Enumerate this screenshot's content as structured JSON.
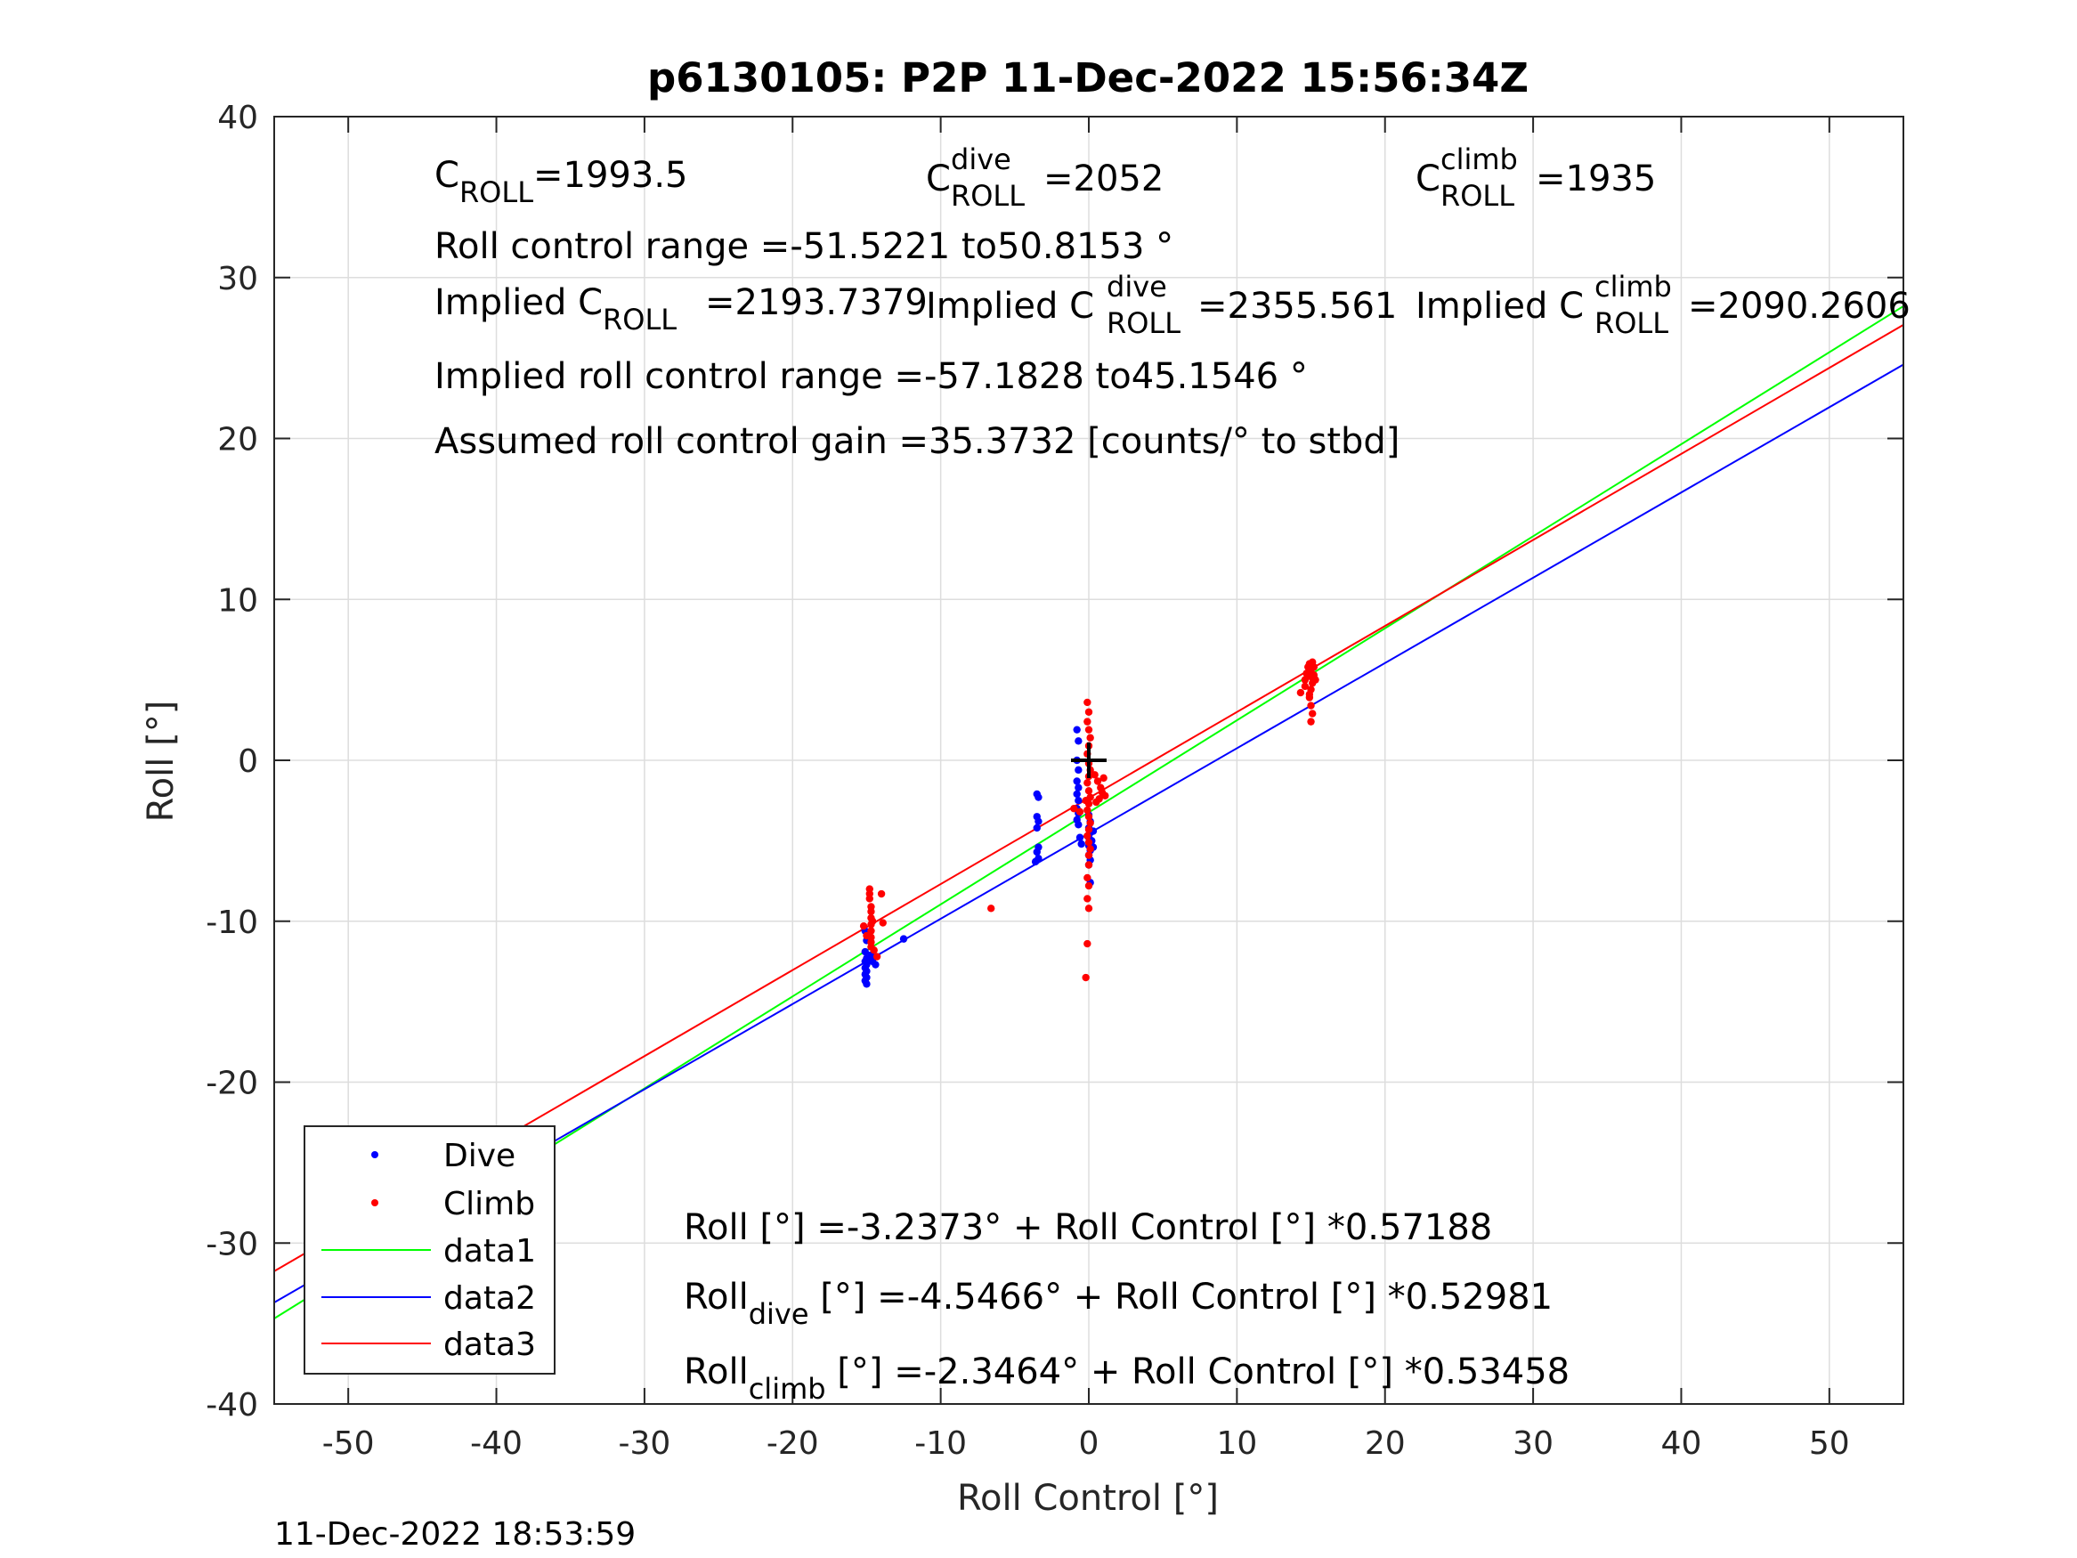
{
  "chart_data": {
    "type": "scatter",
    "title": "p6130105: P2P 11-Dec-2022 15:56:34Z",
    "xlabel": "Roll Control [°]",
    "ylabel": "Roll [°]",
    "xlim": [
      -55,
      55
    ],
    "ylim": [
      -40,
      40
    ],
    "xticks": [
      -50,
      -40,
      -30,
      -20,
      -10,
      0,
      10,
      20,
      30,
      40,
      50
    ],
    "yticks": [
      -40,
      -30,
      -20,
      -10,
      0,
      10,
      20,
      30,
      40
    ],
    "grid": true,
    "legend_position": "bottom-left",
    "timestamp": "11-Dec-2022 18:53:59",
    "center_marker": {
      "x": 0,
      "y": 0
    },
    "annotations": {
      "c_roll": {
        "main": "C",
        "sub": "ROLL",
        "value": "=1993.5"
      },
      "c_roll_dive": {
        "main": "C",
        "sup": "dive",
        "sub": "ROLL",
        "value": "=2052"
      },
      "c_roll_climb": {
        "main": "C",
        "sup": "climb",
        "sub": "ROLL",
        "value": "=1935"
      },
      "roll_control_range": "Roll control range =-51.5221 to50.8153 °",
      "implied_c_roll": {
        "main": "Implied C",
        "sub": "ROLL",
        "value": "=2193.7379"
      },
      "implied_c_roll_dive": {
        "main": "Implied C",
        "sup": "dive",
        "sub": "ROLL",
        "value": "=2355.561"
      },
      "implied_c_roll_climb": {
        "main": "Implied C",
        "sup": "climb",
        "sub": "ROLL",
        "value": "=2090.2606"
      },
      "implied_range": "Implied roll control range =-57.1828 to45.1546 °",
      "gain": "Assumed roll control gain =35.3732 [counts/° to stbd]",
      "fit_all": "Roll [°] =-3.2373° + Roll Control [°] *0.57188",
      "fit_dive": {
        "main": "Roll",
        "sub": "dive",
        "rest": " [°] =-4.5466° + Roll Control [°] *0.52981"
      },
      "fit_climb": {
        "main": "Roll",
        "sub": "climb",
        "rest": " [°] =-2.3464° + Roll Control [°] *0.53458"
      }
    },
    "series": [
      {
        "name": "Dive",
        "kind": "points",
        "color": "#0000ff",
        "points": [
          [
            -15.1,
            -10.6
          ],
          [
            -15.0,
            -11.2
          ],
          [
            -15.1,
            -11.9
          ],
          [
            -15.0,
            -12.3
          ],
          [
            -15.1,
            -12.5
          ],
          [
            -15.0,
            -12.7
          ],
          [
            -15.1,
            -12.9
          ],
          [
            -15.0,
            -13.1
          ],
          [
            -15.1,
            -13.3
          ],
          [
            -15.0,
            -13.5
          ],
          [
            -15.1,
            -13.7
          ],
          [
            -15.0,
            -13.9
          ],
          [
            -14.7,
            -12.1
          ],
          [
            -14.6,
            -12.5
          ],
          [
            -14.4,
            -12.7
          ],
          [
            -12.5,
            -11.1
          ],
          [
            -3.5,
            -2.1
          ],
          [
            -3.4,
            -2.3
          ],
          [
            -3.5,
            -3.5
          ],
          [
            -3.4,
            -3.8
          ],
          [
            -3.5,
            -4.2
          ],
          [
            -3.4,
            -5.4
          ],
          [
            -3.5,
            -5.7
          ],
          [
            -3.4,
            -6.1
          ],
          [
            -3.6,
            -6.3
          ],
          [
            -0.8,
            1.9
          ],
          [
            -0.7,
            1.2
          ],
          [
            -0.8,
            0.0
          ],
          [
            -0.7,
            -0.6
          ],
          [
            -0.8,
            -1.3
          ],
          [
            -0.7,
            -1.7
          ],
          [
            -0.8,
            -2.1
          ],
          [
            -0.7,
            -2.5
          ],
          [
            -0.8,
            -3.0
          ],
          [
            -0.7,
            -3.3
          ],
          [
            -0.8,
            -3.7
          ],
          [
            -0.7,
            -4.0
          ],
          [
            -0.6,
            -4.8
          ],
          [
            -0.5,
            -5.2
          ],
          [
            0.0,
            -3.4
          ],
          [
            0.1,
            -3.8
          ],
          [
            0.0,
            -4.2
          ],
          [
            0.1,
            -4.5
          ],
          [
            0.0,
            -4.8
          ],
          [
            0.1,
            -5.0
          ],
          [
            0.0,
            -5.3
          ],
          [
            0.1,
            -5.6
          ],
          [
            0.0,
            -5.9
          ],
          [
            0.1,
            -6.2
          ],
          [
            0.0,
            -6.5
          ],
          [
            0.1,
            -7.6
          ],
          [
            0.2,
            -5.0
          ],
          [
            0.3,
            -4.4
          ],
          [
            0.3,
            -5.4
          ]
        ]
      },
      {
        "name": "Climb",
        "kind": "points",
        "color": "#ff0000",
        "points": [
          [
            -15.2,
            -10.3
          ],
          [
            -15.0,
            -10.9
          ],
          [
            -14.8,
            -8.0
          ],
          [
            -14.8,
            -8.3
          ],
          [
            -14.8,
            -8.6
          ],
          [
            -14.7,
            -9.1
          ],
          [
            -14.7,
            -9.4
          ],
          [
            -14.7,
            -9.8
          ],
          [
            -14.7,
            -10.2
          ],
          [
            -14.7,
            -10.6
          ],
          [
            -14.7,
            -11.0
          ],
          [
            -14.7,
            -11.3
          ],
          [
            -14.7,
            -11.6
          ],
          [
            -14.5,
            -11.8
          ],
          [
            -14.6,
            -10.0
          ],
          [
            -14.3,
            -12.2
          ],
          [
            -14.0,
            -8.3
          ],
          [
            -13.9,
            -10.1
          ],
          [
            -6.6,
            -9.2
          ],
          [
            -1.0,
            -3.0
          ],
          [
            -0.6,
            -3.2
          ],
          [
            -0.2,
            -2.5
          ],
          [
            -0.1,
            3.6
          ],
          [
            0.0,
            3.0
          ],
          [
            -0.1,
            2.4
          ],
          [
            0.0,
            1.9
          ],
          [
            0.1,
            1.4
          ],
          [
            0.0,
            0.9
          ],
          [
            -0.1,
            0.4
          ],
          [
            0.0,
            -0.2
          ],
          [
            0.1,
            -0.6
          ],
          [
            0.0,
            -1.0
          ],
          [
            -0.1,
            -1.4
          ],
          [
            0.0,
            -1.9
          ],
          [
            0.1,
            -2.3
          ],
          [
            0.0,
            -2.7
          ],
          [
            -0.1,
            -3.1
          ],
          [
            0.0,
            -3.5
          ],
          [
            0.1,
            -3.9
          ],
          [
            0.0,
            -4.3
          ],
          [
            -0.1,
            -4.7
          ],
          [
            0.0,
            -5.1
          ],
          [
            0.1,
            -5.5
          ],
          [
            0.0,
            -5.9
          ],
          [
            0.0,
            -6.5
          ],
          [
            -0.1,
            -7.3
          ],
          [
            0.0,
            -7.8
          ],
          [
            -0.1,
            -8.6
          ],
          [
            0.0,
            -9.2
          ],
          [
            -0.1,
            -11.4
          ],
          [
            -0.2,
            -13.5
          ],
          [
            0.4,
            -0.9
          ],
          [
            0.6,
            -1.3
          ],
          [
            0.8,
            -1.7
          ],
          [
            0.9,
            -2.0
          ],
          [
            0.7,
            -2.4
          ],
          [
            0.5,
            -2.6
          ],
          [
            1.0,
            -1.1
          ],
          [
            1.1,
            -2.2
          ],
          [
            14.3,
            4.2
          ],
          [
            14.6,
            5.0
          ],
          [
            14.7,
            5.4
          ],
          [
            14.8,
            5.8
          ],
          [
            14.9,
            6.0
          ],
          [
            15.0,
            5.6
          ],
          [
            15.0,
            5.2
          ],
          [
            15.1,
            6.1
          ],
          [
            15.2,
            5.8
          ],
          [
            15.2,
            5.3
          ],
          [
            15.1,
            4.8
          ],
          [
            15.0,
            4.4
          ],
          [
            14.9,
            3.9
          ],
          [
            15.0,
            3.4
          ],
          [
            15.1,
            2.9
          ],
          [
            15.0,
            2.4
          ],
          [
            14.6,
            4.6
          ],
          [
            15.3,
            5.0
          ],
          [
            14.9,
            4.1
          ]
        ]
      },
      {
        "name": "data1",
        "kind": "line",
        "color": "#00ff00",
        "x": [
          -55,
          55
        ],
        "y": [
          -34.69,
          28.22
        ]
      },
      {
        "name": "data2",
        "kind": "line",
        "color": "#0000ff",
        "x": [
          -55,
          55
        ],
        "y": [
          -33.69,
          24.59
        ]
      },
      {
        "name": "data3",
        "kind": "line",
        "color": "#ff0000",
        "x": [
          -55,
          55
        ],
        "y": [
          -31.75,
          27.06
        ]
      }
    ]
  }
}
